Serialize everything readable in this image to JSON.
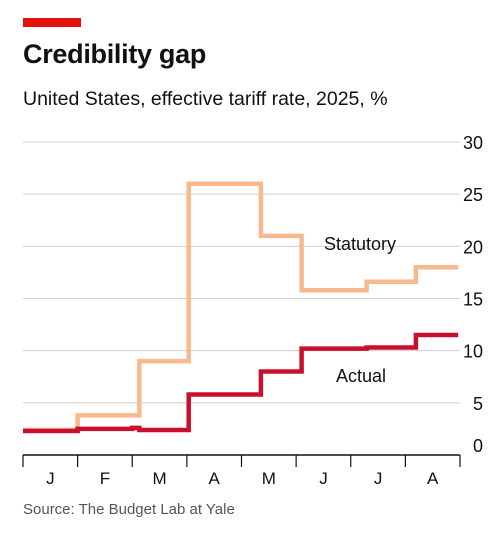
{
  "header": {
    "title": "Credibility gap",
    "subtitle": "United States, effective tariff rate, 2025, %"
  },
  "source": "Source: The Budget Lab at Yale",
  "colors": {
    "accent": "#e3120b",
    "statutory": "#f7b98d",
    "actual": "#c8102e",
    "grid": "#cfcfcf",
    "axis": "#111111",
    "text": "#111111"
  },
  "chart_data": {
    "type": "line",
    "step": true,
    "x": [
      "2025-01-01",
      "2025-02-01",
      "2025-03-01",
      "2025-03-05",
      "2025-04-02",
      "2025-05-12",
      "2025-06-04",
      "2025-07-10",
      "2025-08-07",
      "2025-08-31"
    ],
    "series": [
      {
        "name": "Statutory",
        "values": [
          2.4,
          3.8,
          3.8,
          9.0,
          26.0,
          21.0,
          15.8,
          16.6,
          18.0,
          18.0
        ]
      },
      {
        "name": "Actual",
        "values": [
          2.3,
          2.5,
          2.6,
          2.4,
          5.8,
          8.0,
          10.2,
          10.3,
          11.5,
          11.5
        ]
      }
    ],
    "series_labels_position": "inline",
    "x_tick_labels": [
      "J",
      "F",
      "M",
      "A",
      "M",
      "J",
      "J",
      "A"
    ],
    "ylim": [
      0,
      30
    ],
    "yticks": [
      0,
      5,
      10,
      15,
      20,
      25,
      30
    ],
    "y_axis_side": "right",
    "grid": true,
    "xlabel": "",
    "ylabel": ""
  }
}
